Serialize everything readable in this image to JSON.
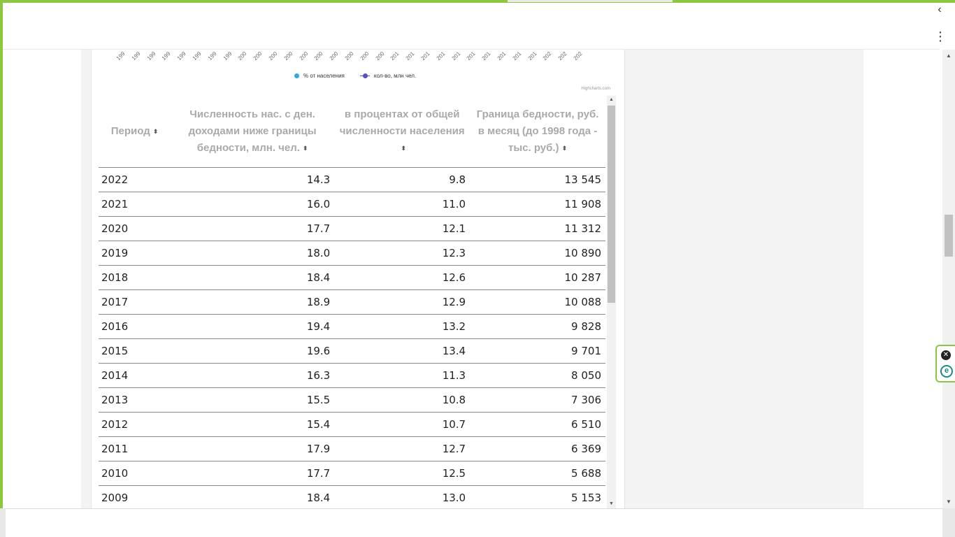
{
  "chart": {
    "x_tick_labels": [
      "199",
      "199",
      "199",
      "199",
      "199",
      "199",
      "199",
      "199",
      "200",
      "200",
      "200",
      "200",
      "200",
      "200",
      "200",
      "200",
      "200",
      "200",
      "201",
      "201",
      "201",
      "201",
      "201",
      "201",
      "201",
      "201",
      "201",
      "201",
      "202",
      "202",
      "202"
    ],
    "legend": [
      {
        "label": "% от населения",
        "color": "#2ea8e0",
        "style": "dot"
      },
      {
        "label": "кол-во, млн чел.",
        "color": "#5a4fc4",
        "style": "line"
      }
    ],
    "credits": "Highcharts.com"
  },
  "table": {
    "headers": [
      "Период",
      "Численность нас. с ден. доходами ниже границы бедности, млн. чел.",
      "в процентах от общей численности населения",
      "Граница бедности, руб. в месяц (до 1998 года - тыс. руб.)"
    ],
    "rows": [
      [
        "2022",
        "14.3",
        "9.8",
        "13 545"
      ],
      [
        "2021",
        "16.0",
        "11.0",
        "11 908"
      ],
      [
        "2020",
        "17.7",
        "12.1",
        "11 312"
      ],
      [
        "2019",
        "18.0",
        "12.3",
        "10 890"
      ],
      [
        "2018",
        "18.4",
        "12.6",
        "10 287"
      ],
      [
        "2017",
        "18.9",
        "12.9",
        "10 088"
      ],
      [
        "2016",
        "19.4",
        "13.2",
        "9 828"
      ],
      [
        "2015",
        "19.6",
        "13.4",
        "9 701"
      ],
      [
        "2014",
        "16.3",
        "11.3",
        "8 050"
      ],
      [
        "2013",
        "15.5",
        "10.8",
        "7 306"
      ],
      [
        "2012",
        "15.4",
        "10.7",
        "6 510"
      ],
      [
        "2011",
        "17.9",
        "12.7",
        "6 369"
      ],
      [
        "2010",
        "17.7",
        "12.5",
        "5 688"
      ],
      [
        "2009",
        "18.4",
        "13.0",
        "5 153"
      ]
    ]
  },
  "widget": {
    "close_glyph": "✕",
    "ext_glyph": "e"
  },
  "icons": {
    "menu": "⋮",
    "back": "‹",
    "sort": "⬍"
  }
}
